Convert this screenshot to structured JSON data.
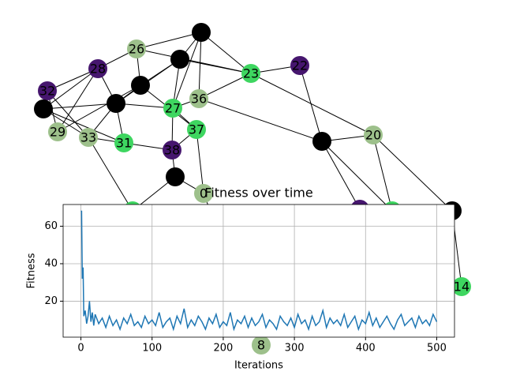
{
  "chart_data": [
    {
      "type": "network",
      "nodes": [
        {
          "color": "#000000"
        },
        {
          "label": "26",
          "color": "#9dc08b"
        },
        {
          "color": "#000000"
        },
        {
          "label": "28",
          "color": "#46166e"
        },
        {
          "label": "22",
          "color": "#46166e"
        },
        {
          "label": "23",
          "color": "#3ed660"
        },
        {
          "label": "32",
          "color": "#46166e"
        },
        {
          "color": "#000000"
        },
        {
          "color": "#000000"
        },
        {
          "label": "27",
          "color": "#3ed660"
        },
        {
          "label": "36",
          "color": "#9dc08b"
        },
        {
          "color": "#000000"
        },
        {
          "label": "29",
          "color": "#9dc08b"
        },
        {
          "label": "33",
          "color": "#9dc08b"
        },
        {
          "label": "31",
          "color": "#3ed660"
        },
        {
          "label": "37",
          "color": "#3ed660"
        },
        {
          "label": "38",
          "color": "#46166e"
        },
        {
          "color": "#000000"
        },
        {
          "label": "20",
          "color": "#9dc08b"
        },
        {
          "color": "#000000"
        },
        {
          "label": "0",
          "color": "#9dc08b"
        },
        {
          "color": "#000000"
        },
        {
          "color": "#46166e"
        },
        {
          "color": "#3ed660"
        },
        {
          "color": "#3ed660"
        },
        {
          "label": "14",
          "color": "#3ed660"
        },
        {
          "label": "8",
          "color": "#9dc08b"
        }
      ],
      "edges": [
        [
          0,
          1
        ],
        [
          0,
          2
        ],
        [
          0,
          5
        ],
        [
          0,
          9
        ],
        [
          0,
          10
        ],
        [
          1,
          3
        ],
        [
          1,
          7
        ],
        [
          2,
          7
        ],
        [
          2,
          5
        ],
        [
          2,
          9
        ],
        [
          2,
          8
        ],
        [
          3,
          6
        ],
        [
          3,
          8
        ],
        [
          3,
          11
        ],
        [
          5,
          4
        ],
        [
          5,
          10
        ],
        [
          4,
          17
        ],
        [
          17,
          18
        ],
        [
          17,
          10
        ],
        [
          17,
          22
        ],
        [
          18,
          23
        ],
        [
          18,
          21
        ],
        [
          21,
          25
        ],
        [
          18,
          5
        ],
        [
          6,
          13
        ],
        [
          6,
          12
        ],
        [
          11,
          8
        ],
        [
          11,
          13
        ],
        [
          12,
          7
        ],
        [
          13,
          14
        ],
        [
          13,
          8
        ],
        [
          7,
          15
        ],
        [
          7,
          8
        ],
        [
          8,
          9
        ],
        [
          8,
          14
        ],
        [
          9,
          15
        ],
        [
          10,
          9
        ],
        [
          15,
          16
        ],
        [
          16,
          19
        ],
        [
          15,
          20
        ],
        [
          19,
          20
        ],
        [
          19,
          24
        ],
        [
          13,
          24
        ],
        [
          12,
          3
        ],
        [
          14,
          16
        ],
        [
          20,
          26
        ],
        [
          22,
          23
        ],
        [
          11,
          14
        ],
        [
          1,
          5
        ],
        [
          9,
          16
        ],
        [
          17,
          23
        ]
      ]
    },
    {
      "type": "line",
      "title": "Fitness over time",
      "x_label": "Iterations",
      "y_label": "Fitness",
      "x": [
        0,
        1,
        2,
        3,
        4,
        6,
        8,
        10,
        12,
        14,
        16,
        18,
        20,
        25,
        30,
        35,
        40,
        45,
        50,
        55,
        60,
        65,
        70,
        75,
        80,
        85,
        90,
        95,
        100,
        105,
        110,
        115,
        120,
        125,
        130,
        135,
        140,
        145,
        150,
        155,
        160,
        165,
        170,
        175,
        180,
        185,
        190,
        195,
        200,
        205,
        210,
        215,
        220,
        225,
        230,
        235,
        240,
        245,
        250,
        255,
        260,
        265,
        270,
        275,
        280,
        285,
        290,
        295,
        300,
        305,
        310,
        315,
        320,
        325,
        330,
        335,
        340,
        345,
        350,
        355,
        360,
        365,
        370,
        375,
        380,
        385,
        390,
        395,
        400,
        405,
        410,
        415,
        420,
        425,
        430,
        435,
        440,
        445,
        450,
        455,
        460,
        465,
        470,
        475,
        480,
        485,
        490,
        495,
        500
      ],
      "values": [
        68,
        68,
        32,
        38,
        12,
        15,
        8,
        12,
        20,
        9,
        14,
        7,
        13,
        8,
        11,
        6,
        12,
        7,
        10,
        5,
        11,
        8,
        13,
        7,
        9,
        6,
        12,
        8,
        10,
        7,
        14,
        6,
        9,
        11,
        5,
        12,
        8,
        16,
        6,
        10,
        7,
        12,
        9,
        5,
        11,
        8,
        13,
        6,
        9,
        7,
        14,
        5,
        10,
        8,
        12,
        6,
        11,
        7,
        9,
        13,
        6,
        10,
        8,
        5,
        12,
        9,
        7,
        11,
        6,
        13,
        8,
        10,
        5,
        12,
        7,
        9,
        15,
        6,
        11,
        8,
        10,
        7,
        13,
        6,
        9,
        12,
        5,
        10,
        8,
        14,
        7,
        11,
        6,
        9,
        12,
        8,
        5,
        10,
        13,
        7,
        9,
        11,
        6,
        12,
        8,
        10,
        7,
        13,
        9
      ],
      "color": "#1f77b4",
      "xlim": [
        -25,
        525
      ],
      "ylim": [
        0.8,
        71.6
      ],
      "xticks": [
        0,
        100,
        200,
        300,
        400,
        500
      ],
      "yticks": [
        20,
        40,
        60
      ],
      "grid": true
    }
  ]
}
